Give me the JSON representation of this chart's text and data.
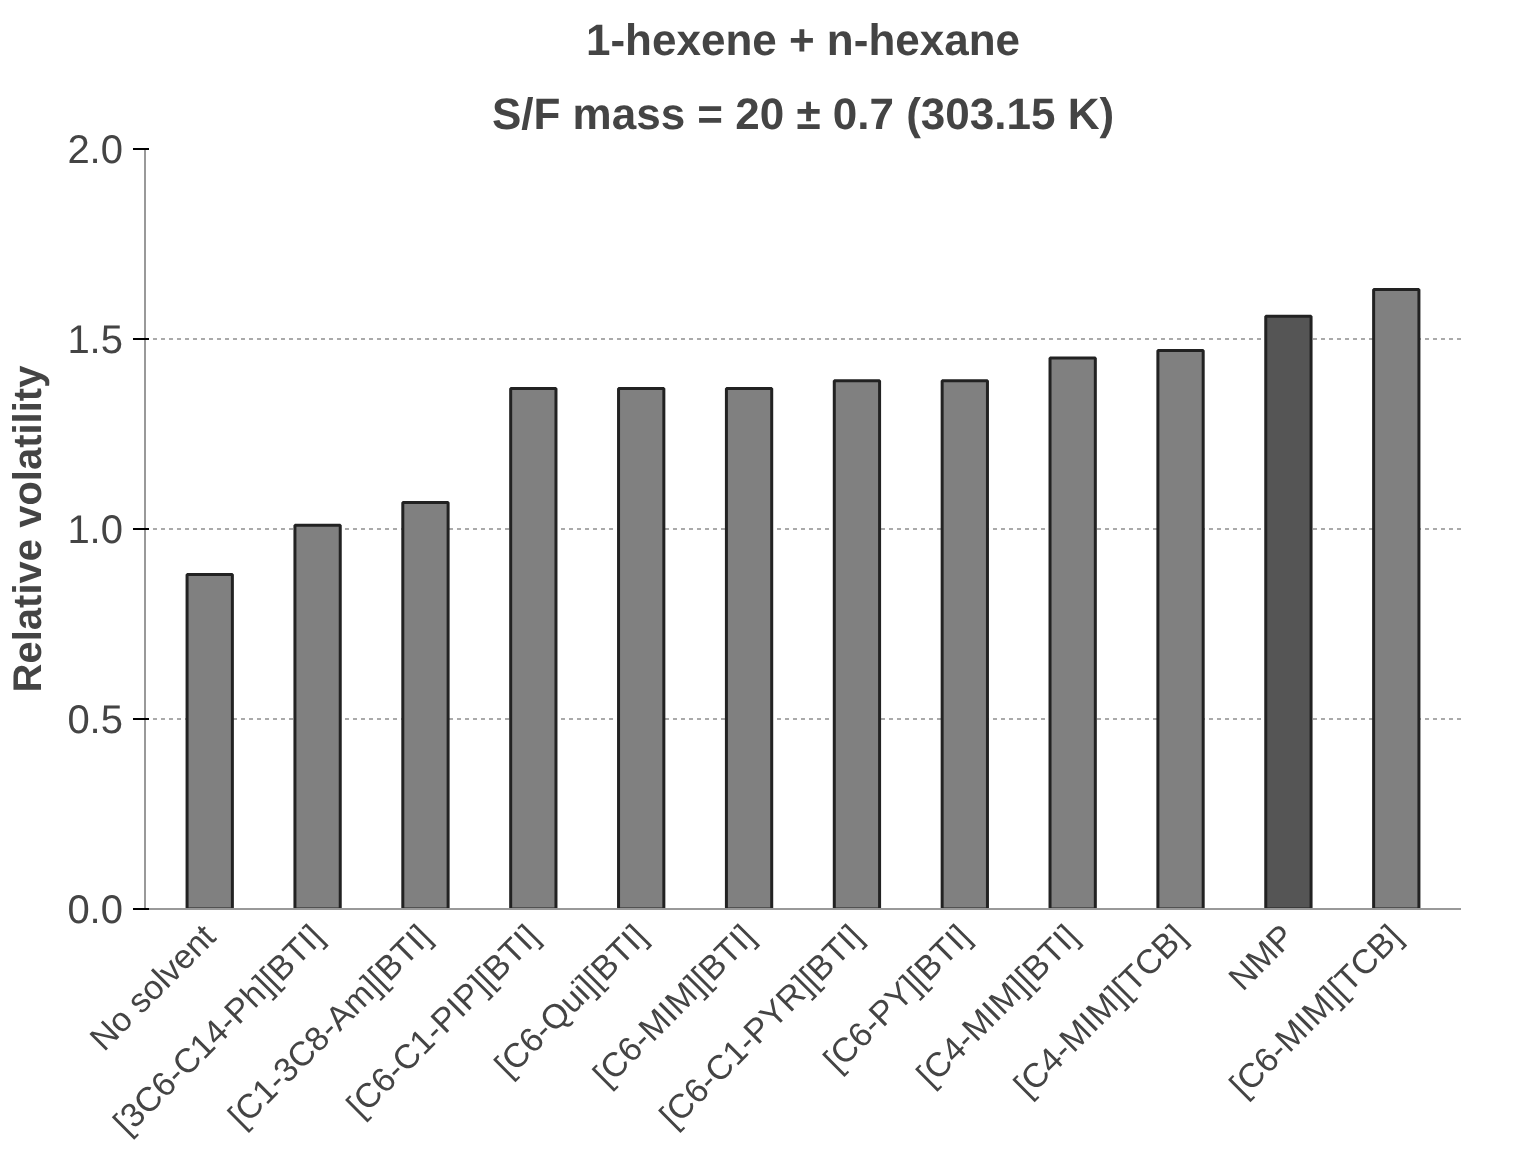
{
  "chart_data": {
    "type": "bar",
    "title": "1-hexene + n-hexane",
    "subtitle": "S/F mass = 20 ± 0.7 (303.15 K)",
    "ylabel": "Relative volatility",
    "categories": [
      "No solvent",
      "[3C6-C14-Ph][BTI]",
      "[C1-3C8-Am][BTI]",
      "[C6-C1-PIP][BTI]",
      "[C6-Qui][BTI]",
      "[C6-MIM][BTI]",
      "[C6-C1-PYR][BTI]",
      "[C6-PY][BTI]",
      "[C4-MIM][BTI]",
      "[C4-MIM][TCB]",
      "NMP",
      "[C6-MIM][TCB]"
    ],
    "values": [
      0.88,
      1.01,
      1.07,
      1.37,
      1.37,
      1.37,
      1.39,
      1.39,
      1.45,
      1.47,
      1.56,
      1.63
    ],
    "colors": [
      "#808080",
      "#808080",
      "#808080",
      "#808080",
      "#808080",
      "#808080",
      "#808080",
      "#808080",
      "#808080",
      "#808080",
      "#555555",
      "#808080"
    ],
    "ylim": [
      0,
      2.0
    ],
    "yticks": [
      {
        "value": 0,
        "label": "0.0"
      },
      {
        "value": 0.5,
        "label": "0.5"
      },
      {
        "value": 1.0,
        "label": "1.0"
      },
      {
        "value": 1.5,
        "label": "1.5"
      },
      {
        "value": 2.0,
        "label": "2.0"
      }
    ],
    "grid": "y"
  }
}
